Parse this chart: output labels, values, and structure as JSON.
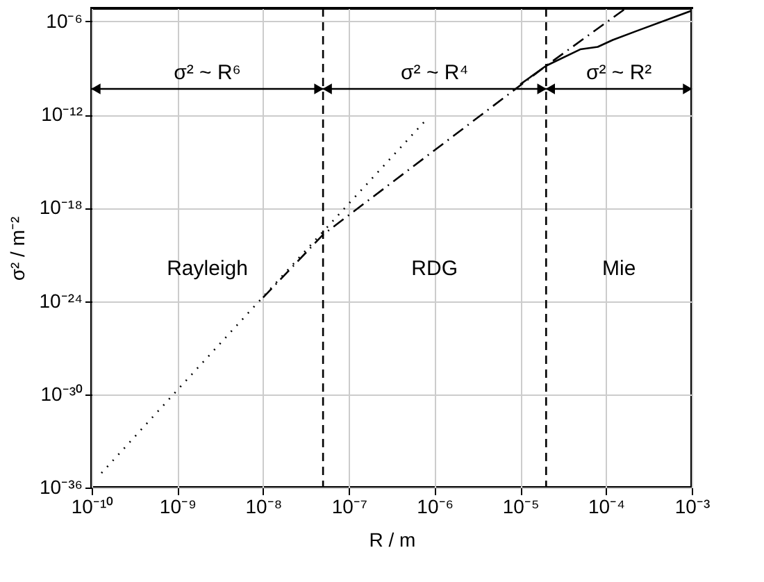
{
  "chart_data": {
    "type": "line",
    "xlabel": "R / m",
    "ylabel": "σ² / m⁻²",
    "log": "xy",
    "grid": true,
    "xlim": [
      1e-10,
      0.001
    ],
    "ylim": [
      1e-36,
      7e-06
    ],
    "xticks": [
      {
        "value": 1e-10,
        "label": "10⁻¹⁰"
      },
      {
        "value": 1e-09,
        "label": "10⁻⁹"
      },
      {
        "value": 1e-08,
        "label": "10⁻⁸"
      },
      {
        "value": 1e-07,
        "label": "10⁻⁷"
      },
      {
        "value": 1e-06,
        "label": "10⁻⁶"
      },
      {
        "value": 1e-05,
        "label": "10⁻⁵"
      },
      {
        "value": 0.0001,
        "label": "10⁻⁴"
      },
      {
        "value": 0.001,
        "label": "10⁻³"
      }
    ],
    "yticks": [
      {
        "value": 1e-36,
        "label": "10⁻³⁶"
      },
      {
        "value": 1e-30,
        "label": "10⁻³⁰"
      },
      {
        "value": 1e-24,
        "label": "10⁻²⁴"
      },
      {
        "value": 1e-18,
        "label": "10⁻¹⁸"
      },
      {
        "value": 1e-12,
        "label": "10⁻¹²"
      },
      {
        "value": 1e-06,
        "label": "10⁻⁶"
      }
    ],
    "series": [
      {
        "color": "#000000",
        "line_style": "dotted",
        "x": [
          1.3e-10,
          1e-09,
          1e-08,
          1e-07,
          8.3e-07
        ],
        "values": [
          8.5e-36,
          1.9e-30,
          1.9e-24,
          1.9e-18,
          6e-13
        ]
      },
      {
        "color": "#000000",
        "line_style": "dashdot",
        "x": [
          1e-08,
          5e-08,
          2e-05,
          0.00017
        ],
        "values": [
          1.7e-24,
          1.9e-20,
          1.4e-09,
          7e-06
        ]
      },
      {
        "color": "#000000",
        "line_style": "solid",
        "x": [
          1e-05,
          2e-05,
          5e-05,
          8e-05,
          0.00012,
          0.00023,
          0.001
        ],
        "values": [
          9e-11,
          1.4e-09,
          1.6e-08,
          2.3e-08,
          6.5e-08,
          2.5e-07,
          5e-06
        ]
      }
    ],
    "ref_lines": [
      {
        "axis": "x",
        "value": 5e-08,
        "line_style": "dashed"
      },
      {
        "axis": "x",
        "value": 2e-05,
        "line_style": "dashed"
      }
    ],
    "annotations": [
      "σ² ~ R⁶",
      "σ² ~ R⁴",
      "σ² ~ R²",
      "Rayleigh",
      "RDG",
      "Mie"
    ]
  }
}
